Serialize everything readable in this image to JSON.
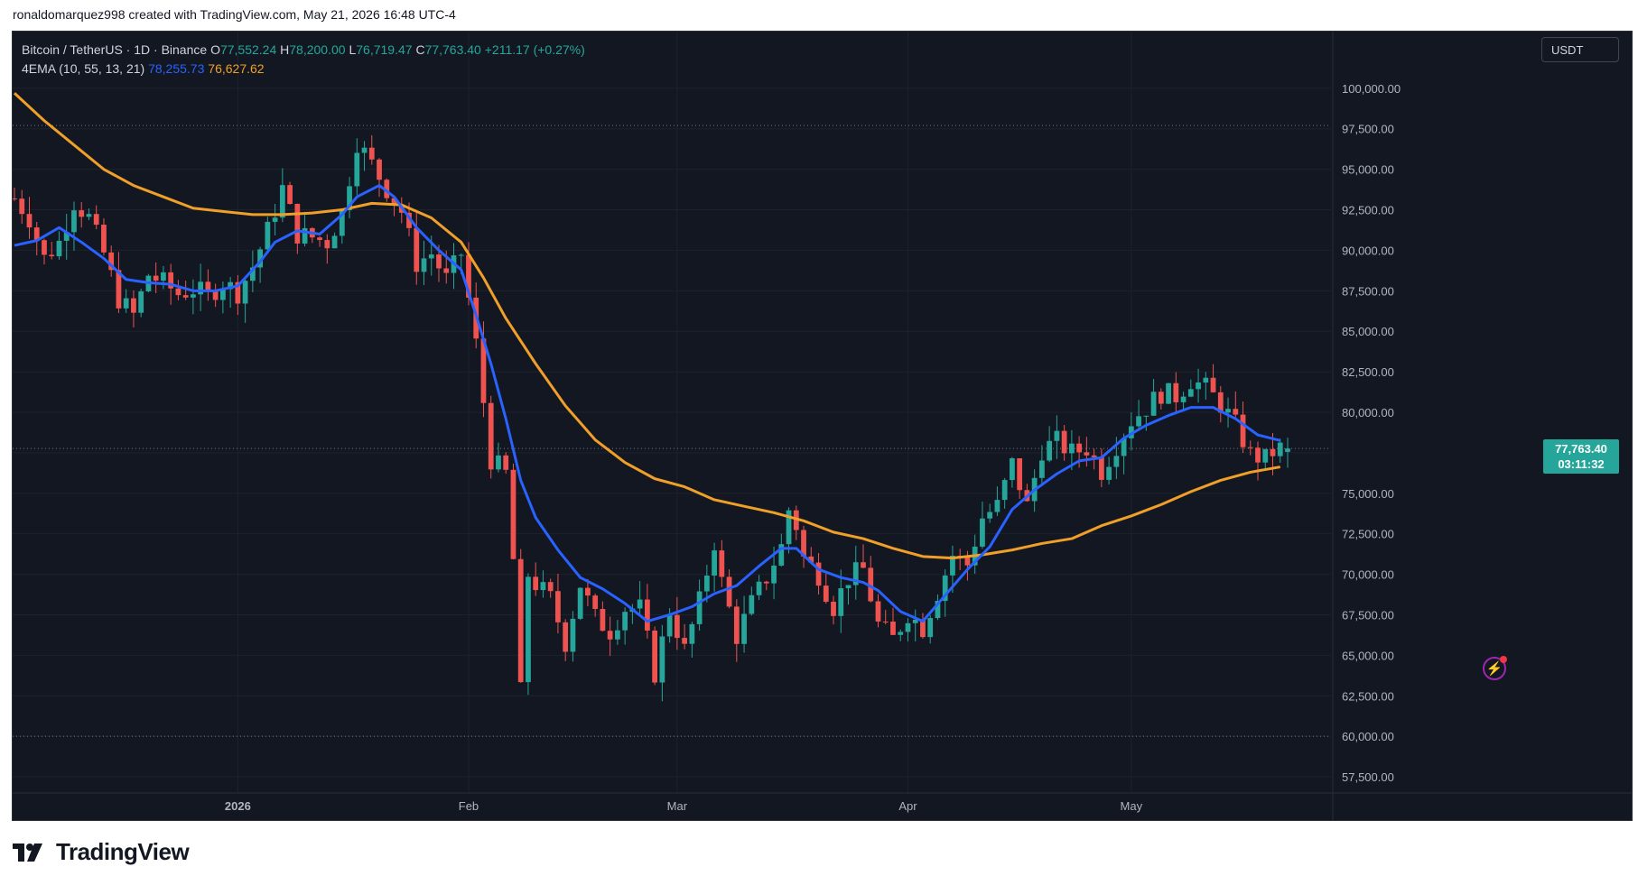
{
  "attribution": "ronaldomarquez998 created with TradingView.com, May 21, 2026 16:48 UTC-4",
  "legend": {
    "symbol": "Bitcoin / TetherUS · 1D · Binance",
    "open_label": "O",
    "open": "77,552.24",
    "high_label": "H",
    "high": "78,200.00",
    "low_label": "L",
    "low": "76,719.47",
    "close_label": "C",
    "close": "77,763.40",
    "change": "+211.17 (+0.27%)",
    "indicator": "4EMA (10, 55, 13, 21)",
    "ema_fast": "78,255.73",
    "ema_slow": "76,627.62"
  },
  "currency": "USDT",
  "last_price_tag": {
    "price": "77,763.40",
    "countdown": "03:11:32"
  },
  "brand": "TradingView",
  "colors": {
    "background": "#131722",
    "grid": "#1e222d",
    "up": "#26a69a",
    "down": "#ef5350",
    "ema_fast": "#2962ff",
    "ema_slow": "#f0a028",
    "axis_text": "#b2b5be"
  },
  "icons": {
    "alert": "lightning-bolt-icon"
  },
  "chart_data": {
    "type": "candlestick",
    "y_axis": {
      "min": 56500,
      "max": 103500,
      "ticks": [
        57500,
        60000,
        62500,
        65000,
        67500,
        70000,
        72500,
        75000,
        77500,
        80000,
        82500,
        85000,
        87500,
        90000,
        92500,
        95000,
        97500,
        100000
      ],
      "tick_labels": [
        "57,500.00",
        "60,000.00",
        "62,500.00",
        "65,000.00",
        "67,500.00",
        "70,000.00",
        "72,500.00",
        "75,000.00",
        "",
        "80,000.00",
        "82,500.00",
        "85,000.00",
        "87,500.00",
        "90,000.00",
        "92,500.00",
        "95,000.00",
        "97,500.00",
        "100,000.00"
      ]
    },
    "x_axis": {
      "labels": [
        {
          "text": "2026",
          "day": 0
        },
        {
          "text": "Feb",
          "day": 31
        },
        {
          "text": "Mar",
          "day": 59
        },
        {
          "text": "Apr",
          "day": 90
        },
        {
          "text": "May",
          "day": 120
        }
      ],
      "first_day": -30,
      "last_day": 141
    },
    "dotted_levels": [
      97700,
      77763.4,
      60000
    ],
    "series_candles": "BTCUSDT daily",
    "close_path": [
      [
        -30,
        93200
      ],
      [
        -28,
        92000
      ],
      [
        -26,
        89500
      ],
      [
        -24,
        90500
      ],
      [
        -22,
        93000
      ],
      [
        -20,
        92000
      ],
      [
        -18,
        89800
      ],
      [
        -16,
        87000
      ],
      [
        -14,
        86000
      ],
      [
        -12,
        88500
      ],
      [
        -10,
        88000
      ],
      [
        -8,
        87300
      ],
      [
        -6,
        87600
      ],
      [
        -4,
        87200
      ],
      [
        -2,
        88000
      ],
      [
        0,
        87400
      ],
      [
        2,
        89000
      ],
      [
        4,
        91200
      ],
      [
        6,
        93800
      ],
      [
        8,
        91000
      ],
      [
        10,
        90800
      ],
      [
        12,
        90500
      ],
      [
        14,
        92300
      ],
      [
        16,
        96700
      ],
      [
        18,
        95300
      ],
      [
        20,
        93800
      ],
      [
        22,
        92400
      ],
      [
        24,
        89200
      ],
      [
        26,
        89800
      ],
      [
        28,
        88200
      ],
      [
        30,
        89800
      ],
      [
        32,
        84200
      ],
      [
        34,
        77100
      ],
      [
        36,
        76200
      ],
      [
        37,
        70900
      ],
      [
        38,
        62700
      ],
      [
        39,
        70000
      ],
      [
        40,
        69400
      ],
      [
        42,
        68500
      ],
      [
        44,
        65800
      ],
      [
        46,
        69400
      ],
      [
        48,
        67300
      ],
      [
        50,
        66500
      ],
      [
        52,
        67900
      ],
      [
        54,
        67900
      ],
      [
        56,
        63900
      ],
      [
        58,
        67800
      ],
      [
        60,
        65300
      ],
      [
        62,
        68300
      ],
      [
        64,
        72000
      ],
      [
        65,
        69500
      ],
      [
        67,
        66200
      ],
      [
        69,
        68200
      ],
      [
        71,
        69800
      ],
      [
        73,
        71700
      ],
      [
        74,
        74000
      ],
      [
        75,
        73000
      ],
      [
        76,
        71000
      ],
      [
        78,
        70000
      ],
      [
        80,
        68000
      ],
      [
        82,
        69800
      ],
      [
        84,
        70300
      ],
      [
        86,
        66900
      ],
      [
        88,
        66000
      ],
      [
        90,
        67600
      ],
      [
        92,
        66700
      ],
      [
        94,
        68900
      ],
      [
        96,
        71200
      ],
      [
        98,
        70600
      ],
      [
        100,
        73500
      ],
      [
        102,
        74200
      ],
      [
        104,
        76800
      ],
      [
        106,
        74200
      ],
      [
        108,
        77700
      ],
      [
        110,
        78200
      ],
      [
        112,
        77500
      ],
      [
        114,
        77800
      ],
      [
        116,
        76400
      ],
      [
        118,
        78000
      ],
      [
        120,
        79500
      ],
      [
        122,
        80300
      ],
      [
        124,
        81200
      ],
      [
        126,
        81000
      ],
      [
        128,
        82000
      ],
      [
        130,
        81500
      ],
      [
        132,
        80500
      ],
      [
        134,
        79200
      ],
      [
        136,
        77400
      ],
      [
        138,
        77100
      ],
      [
        139,
        77550
      ],
      [
        140,
        77763
      ]
    ],
    "ema_fast_points": [
      [
        -30,
        90300
      ],
      [
        -27,
        90600
      ],
      [
        -24,
        91400
      ],
      [
        -21,
        90500
      ],
      [
        -18,
        89500
      ],
      [
        -15,
        88200
      ],
      [
        -12,
        88000
      ],
      [
        -9,
        87900
      ],
      [
        -6,
        87500
      ],
      [
        -3,
        87500
      ],
      [
        0,
        87800
      ],
      [
        3,
        89300
      ],
      [
        5,
        90500
      ],
      [
        8,
        91200
      ],
      [
        11,
        91000
      ],
      [
        14,
        92200
      ],
      [
        16,
        93300
      ],
      [
        19,
        94000
      ],
      [
        21,
        93300
      ],
      [
        24,
        91400
      ],
      [
        27,
        90000
      ],
      [
        30,
        88800
      ],
      [
        32,
        86000
      ],
      [
        34,
        83000
      ],
      [
        36,
        79600
      ],
      [
        38,
        75800
      ],
      [
        40,
        73500
      ],
      [
        43,
        71500
      ],
      [
        46,
        69800
      ],
      [
        49,
        69100
      ],
      [
        52,
        68200
      ],
      [
        55,
        67100
      ],
      [
        58,
        67500
      ],
      [
        61,
        68000
      ],
      [
        64,
        68800
      ],
      [
        67,
        69300
      ],
      [
        70,
        70500
      ],
      [
        73,
        71600
      ],
      [
        75,
        71600
      ],
      [
        78,
        70300
      ],
      [
        81,
        69800
      ],
      [
        84,
        69500
      ],
      [
        86,
        69000
      ],
      [
        89,
        67700
      ],
      [
        92,
        67100
      ],
      [
        95,
        68700
      ],
      [
        98,
        70300
      ],
      [
        101,
        71700
      ],
      [
        104,
        74000
      ],
      [
        107,
        75200
      ],
      [
        110,
        76200
      ],
      [
        113,
        77000
      ],
      [
        116,
        77200
      ],
      [
        119,
        78400
      ],
      [
        122,
        79200
      ],
      [
        125,
        79800
      ],
      [
        128,
        80300
      ],
      [
        131,
        80300
      ],
      [
        134,
        79600
      ],
      [
        137,
        78600
      ],
      [
        140,
        78256
      ]
    ],
    "ema_slow_points": [
      [
        -30,
        99700
      ],
      [
        -26,
        98000
      ],
      [
        -22,
        96500
      ],
      [
        -18,
        95000
      ],
      [
        -14,
        94000
      ],
      [
        -10,
        93300
      ],
      [
        -6,
        92600
      ],
      [
        -2,
        92400
      ],
      [
        2,
        92200
      ],
      [
        6,
        92200
      ],
      [
        10,
        92300
      ],
      [
        14,
        92500
      ],
      [
        18,
        92900
      ],
      [
        22,
        92800
      ],
      [
        26,
        92000
      ],
      [
        30,
        90500
      ],
      [
        33,
        88300
      ],
      [
        36,
        85800
      ],
      [
        40,
        83000
      ],
      [
        44,
        80400
      ],
      [
        48,
        78300
      ],
      [
        52,
        76900
      ],
      [
        56,
        75900
      ],
      [
        60,
        75400
      ],
      [
        64,
        74600
      ],
      [
        68,
        74200
      ],
      [
        72,
        73800
      ],
      [
        76,
        73300
      ],
      [
        80,
        72600
      ],
      [
        84,
        72200
      ],
      [
        88,
        71600
      ],
      [
        92,
        71100
      ],
      [
        96,
        71000
      ],
      [
        100,
        71200
      ],
      [
        104,
        71500
      ],
      [
        108,
        71900
      ],
      [
        112,
        72200
      ],
      [
        116,
        73000
      ],
      [
        120,
        73600
      ],
      [
        124,
        74300
      ],
      [
        128,
        75100
      ],
      [
        132,
        75800
      ],
      [
        136,
        76300
      ],
      [
        140,
        76628
      ]
    ]
  }
}
